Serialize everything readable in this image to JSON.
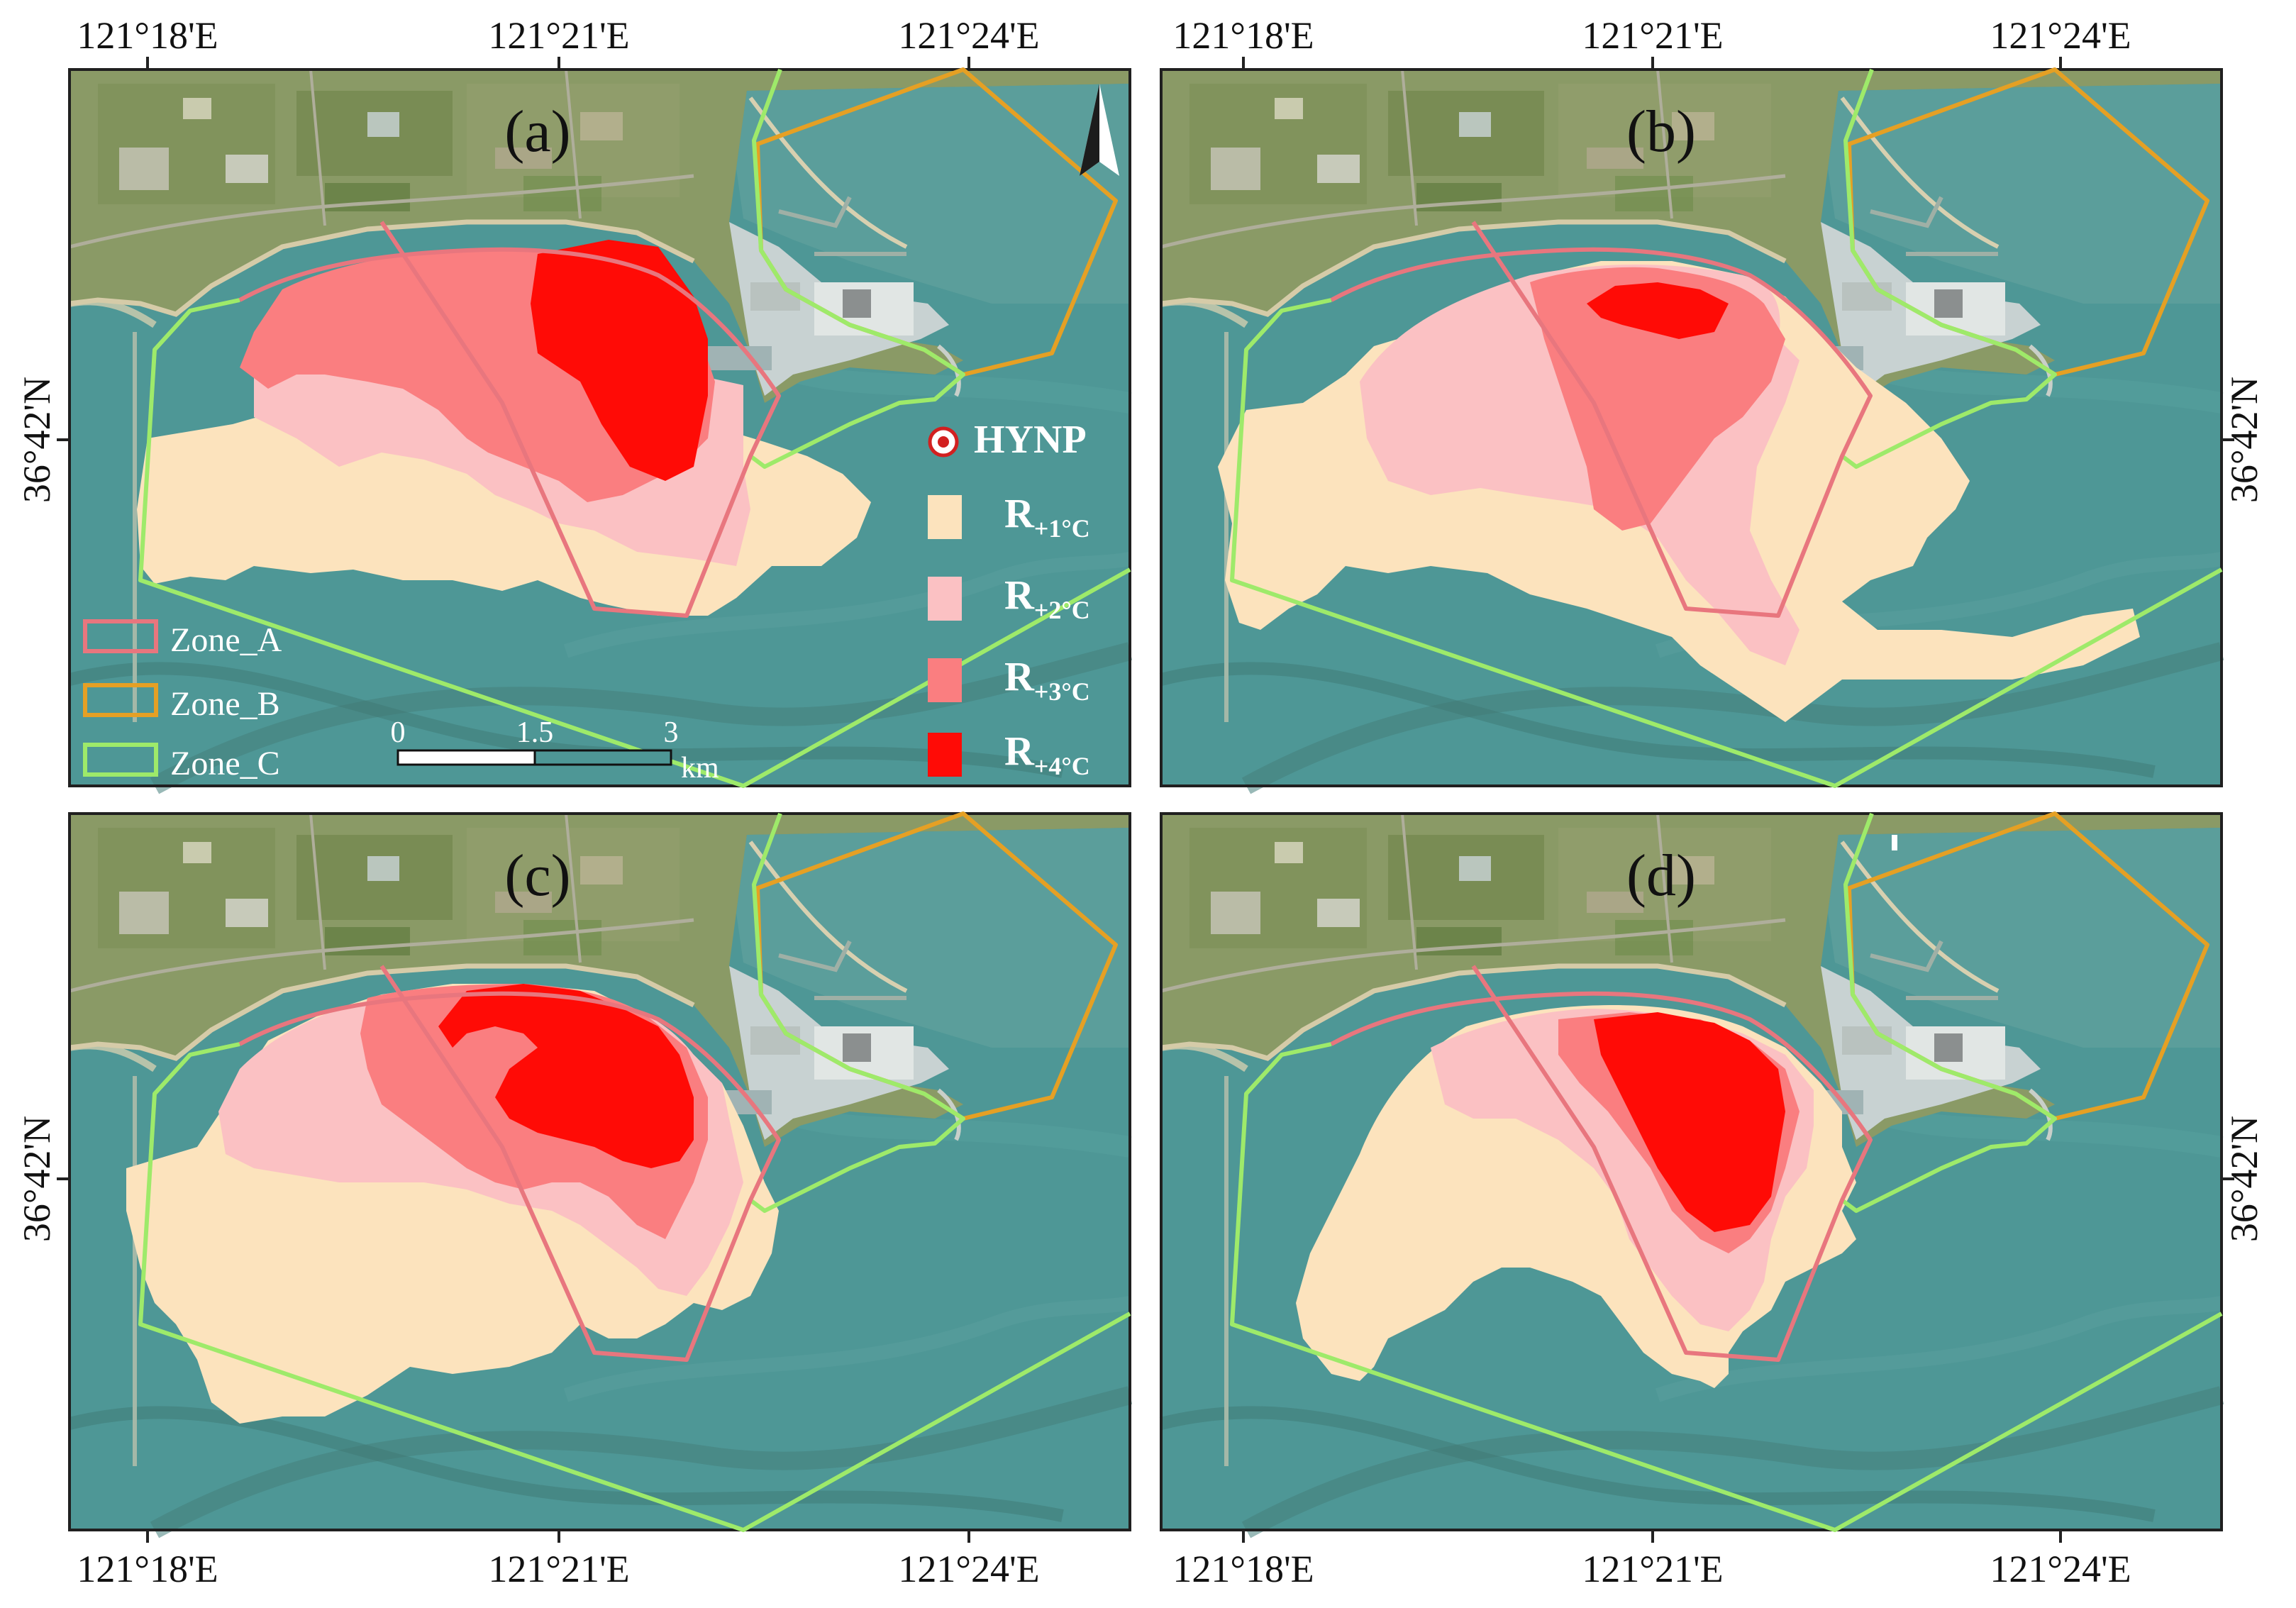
{
  "figure": {
    "panels": [
      {
        "label": "(a)"
      },
      {
        "label": "(b)"
      },
      {
        "label": "(c)"
      },
      {
        "label": "(d)"
      }
    ],
    "lon_ticks": [
      "121°18'E",
      "121°21'E",
      "121°24'E"
    ],
    "lat_tick": "36°42'N",
    "north_arrow": "N",
    "hynp_label": "HYNP",
    "zone_legend": [
      {
        "label": "Zone_A",
        "color": "#E8767E"
      },
      {
        "label": "Zone_B",
        "color": "#E5A024"
      },
      {
        "label": "Zone_C",
        "color": "#9EEA6A"
      }
    ],
    "temp_legend": [
      {
        "base": "R",
        "sub": "+1°C",
        "color": "#FCE3BD"
      },
      {
        "base": "R",
        "sub": "+2°C",
        "color": "#FBC1C3"
      },
      {
        "base": "R",
        "sub": "+3°C",
        "color": "#FA7E80"
      },
      {
        "base": "R",
        "sub": "+4°C",
        "color": "#FF0B06"
      }
    ],
    "scale_bar": {
      "ticks": [
        "0",
        "1.5",
        "3"
      ],
      "unit": "km"
    },
    "colors": {
      "sea": "#4E9796",
      "land": "#8A9A66",
      "zone_a": "#E8767E",
      "zone_b": "#E5A024",
      "zone_c": "#9EEA6A",
      "r1": "#FCE3BD",
      "r2": "#FBC1C3",
      "r3": "#FA7E80",
      "r4": "#FF0B06"
    }
  }
}
